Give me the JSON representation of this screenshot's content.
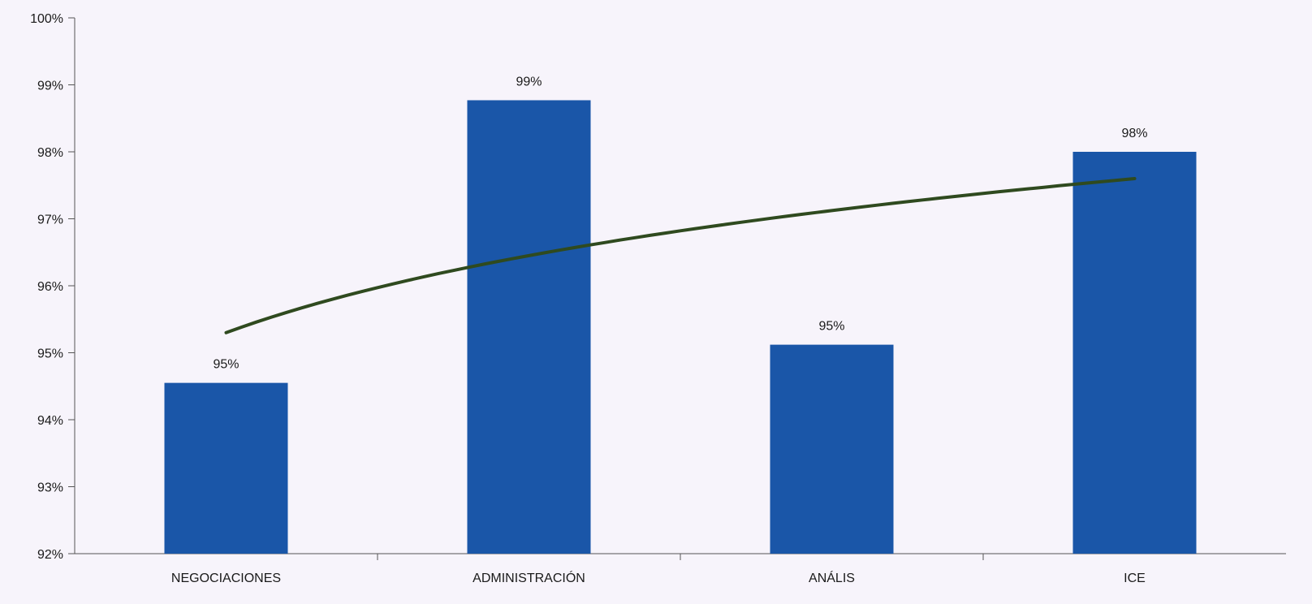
{
  "colors": {
    "bar": "#1a56a8",
    "trend": "#2f4a1f",
    "axis": "#555555",
    "background": "#f7f4fb"
  },
  "chart_data": {
    "type": "bar",
    "categories": [
      "NEGOCIACIONES",
      "ADMINISTRACIÓN",
      "ANÁLIS",
      "ICE"
    ],
    "values": [
      94.55,
      98.77,
      95.12,
      98.0
    ],
    "data_labels": [
      "95%",
      "99%",
      "95%",
      "98%"
    ],
    "ylim": [
      92,
      100
    ],
    "y_ticks": [
      92,
      93,
      94,
      95,
      96,
      97,
      98,
      99,
      100
    ],
    "y_tick_labels": [
      "92%",
      "93%",
      "94%",
      "95%",
      "96%",
      "97%",
      "98%",
      "99%",
      "100%"
    ],
    "trendline": {
      "type": "logarithmic",
      "start_value": 95.3,
      "end_value": 97.6
    },
    "grid": false,
    "legend": "none"
  }
}
